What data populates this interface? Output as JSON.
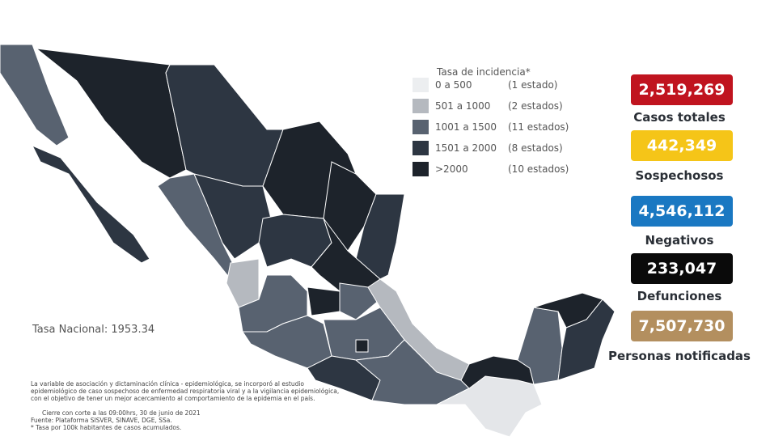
{
  "legend": {
    "title": "Tasa de incidencia*",
    "items": [
      {
        "range": "0 a   500",
        "count": "(1 estado)",
        "color": "#eceef0"
      },
      {
        "range": "501 a  1000",
        "count": "(2 estados)",
        "color": "#b5b9bf"
      },
      {
        "range": "1001 a  1500",
        "count": "(11 estados)",
        "color": "#586270"
      },
      {
        "range": "1501 a  2000",
        "count": "(8 estados)",
        "color": "#2d3642"
      },
      {
        "range": ">2000",
        "count": "(10 estados)",
        "color": "#1d232b"
      }
    ]
  },
  "national_rate": "Tasa Nacional: 1953.34",
  "stats": [
    {
      "value": "2,519,269",
      "label": "Casos totales",
      "color": "#c0141f"
    },
    {
      "value": "442,349",
      "label": "Sospechosos",
      "color": "#f5c518"
    },
    {
      "value": "4,546,112",
      "label": "Negativos",
      "color": "#1a78c2"
    },
    {
      "value": "233,047",
      "label": "Defunciones",
      "color": "#0a0a0a"
    },
    {
      "value": "7,507,730",
      "label": "Personas notificadas",
      "color": "#b38f5f"
    }
  ],
  "notes": [
    "La variable de asociación y dictaminación clínica - epidemiológica, se incorporó al estudio",
    "epidemiológico de caso sospechoso de enfermedad respiratoria viral y a la vigilancia epidemiológica,",
    "con el objetivo de tener un mejor acercamiento al comportamiento de la epidemia en el país.",
    "Cierre con corte a las 09:00hrs, 30 de junio de 2021",
    "Fuente: Plataforma SISVER, SINAVE, DGE, SSa.",
    "* Tasa por 100k habitantes de casos acumulados."
  ]
}
